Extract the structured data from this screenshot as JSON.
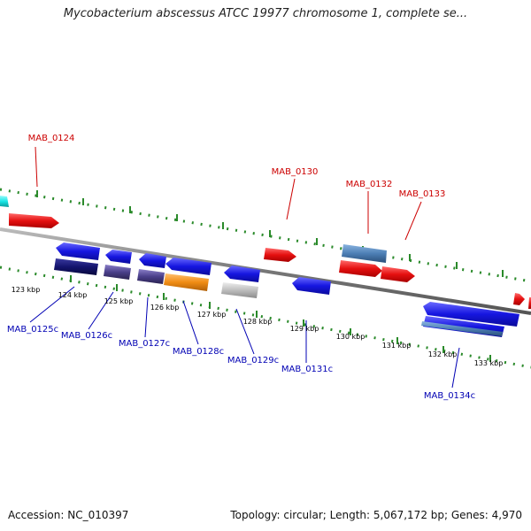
{
  "title": "Mycobacterium abscessus ATCC 19977 chromosome 1, complete se...",
  "footer": {
    "accession": "Accession: NC_010397",
    "summary": "Topology: circular; Length: 5,067,172 bp; Genes: 4,970"
  },
  "ticks": [
    "123 kbp",
    "124 kbp",
    "125 kbp",
    "126 kbp",
    "127 kbp",
    "128 kbp",
    "129 kbp",
    "130 kbp",
    "131 kbp",
    "132 kbp",
    "133 kbp"
  ],
  "forward_gene_labels": [
    "MAB_0124",
    "MAB_0130",
    "MAB_0132",
    "MAB_0133"
  ],
  "reverse_gene_labels": [
    "MAB_0125c",
    "MAB_0126c",
    "MAB_0127c",
    "MAB_0128c",
    "MAB_0129c",
    "MAB_0131c",
    "MAB_0134c"
  ],
  "colors": {
    "backbone": "#888888",
    "dots": "#2a8a2a",
    "forward_gene": "#e51010",
    "reverse_gene": "#1616e0",
    "navy_gene": "#14146e",
    "slate_gene": "#4a3f8a",
    "orange_gene": "#f08c14",
    "steel_gene": "#4d7fb5",
    "grey_gene": "#bdbdbd",
    "cyan_gene": "#19e6e6",
    "forward_label": "#cc0000",
    "reverse_label": "#0000b4"
  }
}
